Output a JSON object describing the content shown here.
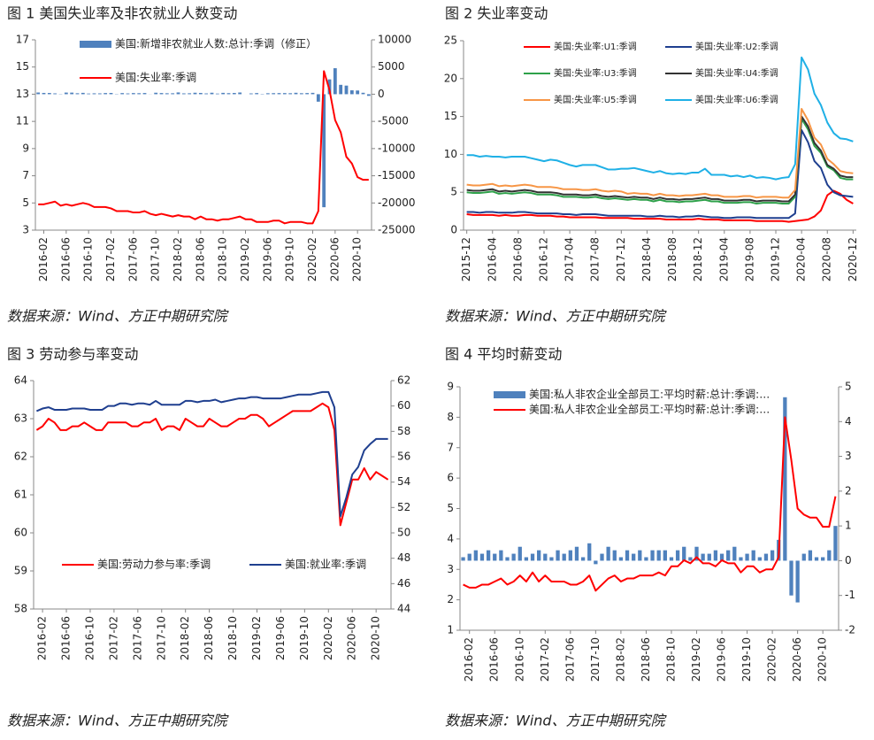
{
  "chart_data": [
    {
      "type": "combo",
      "title": "图 1 美国失业率及非农就业人数变动",
      "source": "数据来源：Wind、方正中期研究院",
      "legend": "top",
      "categories": [
        null,
        "2016-02",
        null,
        null,
        null,
        "2016-06",
        null,
        null,
        null,
        "2016-10",
        null,
        null,
        null,
        "2017-02",
        null,
        null,
        null,
        "2017-06",
        null,
        null,
        null,
        "2017-10",
        null,
        null,
        null,
        "2018-02",
        null,
        null,
        null,
        "2018-06",
        null,
        null,
        null,
        "2018-10",
        null,
        null,
        null,
        "2019-02",
        null,
        null,
        null,
        "2019-06",
        null,
        null,
        null,
        "2019-10",
        null,
        null,
        null,
        "2020-02",
        null,
        null,
        null,
        "2020-06",
        null,
        null,
        null,
        "2020-10",
        null,
        null
      ],
      "ylim": [
        3,
        17
      ],
      "yticks": [
        3,
        5,
        7,
        9,
        11,
        13,
        15,
        17
      ],
      "y2lim": [
        -25000,
        10000
      ],
      "y2ticks": [
        -25000,
        -20000,
        -15000,
        -10000,
        -5000,
        0,
        5000,
        10000
      ],
      "series": [
        {
          "name": "美国:新增非农就业人数:总计:季调（修正）",
          "type": "bar",
          "axis": "y2",
          "color": "#4f81bd",
          "values": [
            310,
            237,
            225,
            153,
            43,
            297,
            291,
            176,
            249,
            124,
            164,
            155,
            216,
            232,
            50,
            207,
            145,
            210,
            187,
            221,
            18,
            271,
            216,
            175,
            176,
            324,
            155,
            175,
            270,
            235,
            147,
            270,
            118,
            250,
            196,
            227,
            312,
            1,
            147,
            210,
            62,
            178,
            194,
            207,
            208,
            185,
            261,
            184,
            214,
            251,
            -1373,
            -20787,
            2725,
            4781,
            1726,
            1583,
            716,
            680,
            264,
            -306
          ]
        },
        {
          "name": "美国:失业率:季调",
          "type": "line",
          "color": "#ff0000",
          "values": [
            4.9,
            4.9,
            5.0,
            5.1,
            4.8,
            4.9,
            4.8,
            4.9,
            5.0,
            4.9,
            4.7,
            4.7,
            4.7,
            4.6,
            4.4,
            4.4,
            4.4,
            4.3,
            4.3,
            4.4,
            4.2,
            4.1,
            4.2,
            4.1,
            4.0,
            4.1,
            4.0,
            4.0,
            3.8,
            4.0,
            3.8,
            3.8,
            3.7,
            3.8,
            3.8,
            3.9,
            4.0,
            3.8,
            3.8,
            3.6,
            3.6,
            3.6,
            3.7,
            3.7,
            3.5,
            3.6,
            3.6,
            3.6,
            3.5,
            3.5,
            4.4,
            14.7,
            13.3,
            11.1,
            10.2,
            8.4,
            7.9,
            6.9,
            6.7,
            6.7
          ]
        }
      ]
    },
    {
      "type": "line",
      "title": "图 2 失业率变动",
      "source": "数据来源：Wind、方正中期研究院",
      "legend": "top",
      "categories": [
        "2015-12",
        null,
        null,
        null,
        "2016-04",
        null,
        null,
        null,
        "2016-08",
        null,
        null,
        null,
        "2016-12",
        null,
        null,
        null,
        "2017-04",
        null,
        null,
        null,
        "2017-08",
        null,
        null,
        null,
        "2017-12",
        null,
        null,
        null,
        "2018-04",
        null,
        null,
        null,
        "2018-08",
        null,
        null,
        null,
        "2018-12",
        null,
        null,
        null,
        "2019-04",
        null,
        null,
        null,
        "2019-08",
        null,
        null,
        null,
        "2019-12",
        null,
        null,
        null,
        "2020-04",
        null,
        null,
        null,
        "2020-08",
        null,
        null,
        null,
        "2020-12"
      ],
      "ylim": [
        0,
        25
      ],
      "yticks": [
        0,
        5,
        10,
        15,
        20,
        25
      ],
      "series": [
        {
          "name": "美国:失业率:U1:季调",
          "type": "line",
          "color": "#ff0000",
          "values": [
            2.1,
            2.0,
            2.0,
            2.0,
            2.0,
            1.9,
            2.0,
            1.9,
            1.9,
            2.0,
            2.0,
            1.9,
            1.9,
            1.9,
            1.8,
            1.8,
            1.7,
            1.7,
            1.7,
            1.7,
            1.7,
            1.6,
            1.6,
            1.6,
            1.6,
            1.6,
            1.5,
            1.5,
            1.5,
            1.5,
            1.5,
            1.4,
            1.4,
            1.4,
            1.4,
            1.4,
            1.5,
            1.4,
            1.4,
            1.4,
            1.3,
            1.3,
            1.3,
            1.3,
            1.3,
            1.2,
            1.2,
            1.2,
            1.2,
            1.2,
            1.1,
            1.2,
            1.3,
            1.4,
            1.8,
            2.6,
            4.6,
            5.2,
            4.8,
            4.0,
            3.5
          ]
        },
        {
          "name": "美国:失业率:U2:季调",
          "type": "line",
          "color": "#1f3f8f",
          "values": [
            2.4,
            2.4,
            2.3,
            2.4,
            2.4,
            2.3,
            2.3,
            2.3,
            2.4,
            2.4,
            2.3,
            2.2,
            2.2,
            2.2,
            2.2,
            2.1,
            2.1,
            2.0,
            2.1,
            2.1,
            2.1,
            2.0,
            1.9,
            1.9,
            1.9,
            1.9,
            1.9,
            1.9,
            1.8,
            1.8,
            1.9,
            1.8,
            1.8,
            1.7,
            1.8,
            1.8,
            1.9,
            1.8,
            1.7,
            1.7,
            1.6,
            1.6,
            1.7,
            1.7,
            1.7,
            1.6,
            1.6,
            1.6,
            1.6,
            1.6,
            1.6,
            2.2,
            13.2,
            11.6,
            9.1,
            8.2,
            6.0,
            5.0,
            4.6,
            4.5,
            4.4
          ]
        },
        {
          "name": "美国:失业率:U3:季调",
          "type": "line",
          "color": "#2ea14a",
          "values": [
            5.0,
            4.9,
            4.9,
            5.0,
            5.1,
            4.8,
            4.9,
            4.8,
            4.9,
            5.0,
            4.9,
            4.7,
            4.7,
            4.7,
            4.6,
            4.4,
            4.4,
            4.4,
            4.3,
            4.3,
            4.4,
            4.2,
            4.1,
            4.2,
            4.1,
            4.0,
            4.1,
            4.0,
            4.0,
            3.8,
            4.0,
            3.8,
            3.8,
            3.7,
            3.8,
            3.8,
            3.9,
            4.0,
            3.8,
            3.8,
            3.6,
            3.6,
            3.6,
            3.7,
            3.7,
            3.5,
            3.6,
            3.6,
            3.6,
            3.5,
            3.5,
            4.4,
            14.7,
            13.3,
            11.1,
            10.2,
            8.4,
            7.9,
            6.9,
            6.7,
            6.7
          ]
        },
        {
          "name": "美国:失业率:U4:季调",
          "type": "line",
          "color": "#333333",
          "values": [
            5.3,
            5.2,
            5.2,
            5.3,
            5.4,
            5.1,
            5.2,
            5.1,
            5.2,
            5.3,
            5.2,
            5.0,
            5.0,
            5.0,
            4.9,
            4.7,
            4.7,
            4.7,
            4.6,
            4.6,
            4.7,
            4.5,
            4.4,
            4.5,
            4.4,
            4.3,
            4.4,
            4.3,
            4.3,
            4.1,
            4.3,
            4.1,
            4.1,
            4.0,
            4.1,
            4.1,
            4.2,
            4.3,
            4.1,
            4.1,
            3.9,
            3.9,
            3.9,
            4.0,
            4.0,
            3.8,
            3.9,
            3.9,
            3.9,
            3.8,
            3.8,
            4.7,
            15.0,
            13.7,
            11.5,
            10.5,
            8.6,
            8.1,
            7.2,
            7.0,
            7.0
          ]
        },
        {
          "name": "美国:失业率:U5:季调",
          "type": "line",
          "color": "#f79646",
          "values": [
            6.0,
            5.9,
            5.9,
            6.0,
            6.1,
            5.8,
            5.9,
            5.8,
            5.9,
            6.0,
            5.9,
            5.7,
            5.7,
            5.7,
            5.6,
            5.4,
            5.4,
            5.4,
            5.3,
            5.3,
            5.4,
            5.2,
            5.1,
            5.2,
            5.1,
            4.8,
            4.9,
            4.8,
            4.8,
            4.6,
            4.8,
            4.6,
            4.6,
            4.5,
            4.6,
            4.6,
            4.7,
            4.8,
            4.6,
            4.6,
            4.4,
            4.4,
            4.4,
            4.5,
            4.5,
            4.3,
            4.4,
            4.4,
            4.4,
            4.3,
            4.3,
            5.3,
            16.0,
            14.5,
            12.2,
            11.3,
            9.4,
            8.7,
            7.8,
            7.6,
            7.5
          ]
        },
        {
          "name": "美国:失业率:U6:季调",
          "type": "line",
          "color": "#1fb0e6",
          "values": [
            9.9,
            9.9,
            9.7,
            9.8,
            9.7,
            9.7,
            9.6,
            9.7,
            9.7,
            9.7,
            9.5,
            9.3,
            9.1,
            9.3,
            9.2,
            8.9,
            8.6,
            8.4,
            8.6,
            8.6,
            8.6,
            8.3,
            8.0,
            8.0,
            8.1,
            8.1,
            8.2,
            8.0,
            7.8,
            7.6,
            7.8,
            7.5,
            7.4,
            7.5,
            7.4,
            7.6,
            7.6,
            8.1,
            7.3,
            7.3,
            7.3,
            7.1,
            7.2,
            7.0,
            7.2,
            6.9,
            7.0,
            6.9,
            6.7,
            6.9,
            7.0,
            8.7,
            22.8,
            21.2,
            18.0,
            16.5,
            14.2,
            12.8,
            12.1,
            12.0,
            11.7
          ]
        }
      ]
    },
    {
      "type": "line",
      "title": "图 3 劳动参与率变动",
      "source": "数据来源：Wind、方正中期研究院",
      "legend": "bottom",
      "categories": [
        null,
        "2016-02",
        null,
        null,
        null,
        "2016-06",
        null,
        null,
        null,
        "2016-10",
        null,
        null,
        null,
        "2017-02",
        null,
        null,
        null,
        "2017-06",
        null,
        null,
        null,
        "2017-10",
        null,
        null,
        null,
        "2018-02",
        null,
        null,
        null,
        "2018-06",
        null,
        null,
        null,
        "2018-10",
        null,
        null,
        null,
        "2019-02",
        null,
        null,
        null,
        "2019-06",
        null,
        null,
        null,
        "2019-10",
        null,
        null,
        null,
        "2020-02",
        null,
        null,
        null,
        "2020-06",
        null,
        null,
        null,
        "2020-10",
        null,
        null
      ],
      "ylim": [
        58,
        64
      ],
      "yticks": [
        58,
        59,
        60,
        61,
        62,
        63,
        64
      ],
      "y2lim": [
        44,
        62
      ],
      "y2ticks": [
        44,
        46,
        48,
        50,
        52,
        54,
        56,
        58,
        60,
        62
      ],
      "series": [
        {
          "name": "美国:劳动力参与率:季调",
          "type": "line",
          "color": "#ff0000",
          "values": [
            62.7,
            62.8,
            63.0,
            62.9,
            62.7,
            62.7,
            62.8,
            62.8,
            62.9,
            62.8,
            62.7,
            62.7,
            62.9,
            62.9,
            62.9,
            62.9,
            62.8,
            62.8,
            62.9,
            62.9,
            63.0,
            62.7,
            62.8,
            62.8,
            62.7,
            63.0,
            62.9,
            62.8,
            62.8,
            63.0,
            62.9,
            62.8,
            62.8,
            62.9,
            63.0,
            63.0,
            63.1,
            63.1,
            63.0,
            62.8,
            62.9,
            63.0,
            63.1,
            63.2,
            63.2,
            63.2,
            63.2,
            63.3,
            63.4,
            63.3,
            62.7,
            60.2,
            60.8,
            61.4,
            61.4,
            61.7,
            61.4,
            61.6,
            61.5,
            61.4
          ]
        },
        {
          "name": "美国:就业率:季调",
          "type": "line",
          "axis": "y2",
          "color": "#1f3f8f",
          "values": [
            59.6,
            59.8,
            59.9,
            59.7,
            59.7,
            59.7,
            59.8,
            59.8,
            59.8,
            59.7,
            59.7,
            59.7,
            60.0,
            60.0,
            60.2,
            60.2,
            60.1,
            60.2,
            60.2,
            60.1,
            60.4,
            60.1,
            60.1,
            60.1,
            60.1,
            60.4,
            60.4,
            60.3,
            60.4,
            60.4,
            60.5,
            60.3,
            60.4,
            60.5,
            60.6,
            60.6,
            60.7,
            60.7,
            60.6,
            60.6,
            60.6,
            60.6,
            60.7,
            60.8,
            60.9,
            60.9,
            60.9,
            61.0,
            61.1,
            61.1,
            59.9,
            51.3,
            52.8,
            54.6,
            55.2,
            56.5,
            57.0,
            57.4,
            57.4,
            57.4
          ]
        }
      ]
    },
    {
      "type": "combo",
      "title": "图 4 平均时薪变动",
      "source": "数据来源：Wind、方正中期研究院",
      "legend": "top",
      "categories": [
        null,
        "2016-02",
        null,
        null,
        null,
        "2016-06",
        null,
        null,
        null,
        "2016-10",
        null,
        null,
        null,
        "2017-02",
        null,
        null,
        null,
        "2017-06",
        null,
        null,
        null,
        "2017-10",
        null,
        null,
        null,
        "2018-02",
        null,
        null,
        null,
        "2018-06",
        null,
        null,
        null,
        "2018-10",
        null,
        null,
        null,
        "2019-02",
        null,
        null,
        null,
        "2019-06",
        null,
        null,
        null,
        "2019-10",
        null,
        null,
        null,
        "2020-02",
        null,
        null,
        null,
        "2020-06",
        null,
        null,
        null,
        "2020-10",
        null,
        null
      ],
      "ylim": [
        1,
        9
      ],
      "yticks": [
        1,
        2,
        3,
        4,
        5,
        6,
        7,
        8,
        9
      ],
      "y2lim": [
        -2,
        5
      ],
      "y2ticks": [
        -2,
        -1,
        0,
        1,
        2,
        3,
        4,
        5
      ],
      "series": [
        {
          "name": "美国:私人非农企业全部员工:平均时薪:总计:季调:…",
          "type": "bar",
          "axis": "y2",
          "color": "#4f81bd",
          "values": [
            0.1,
            0.2,
            0.3,
            0.2,
            0.3,
            0.2,
            0.3,
            0.1,
            0.2,
            0.4,
            0.1,
            0.2,
            0.3,
            0.2,
            0.1,
            0.3,
            0.2,
            0.3,
            0.4,
            0.1,
            0.5,
            -0.1,
            0.2,
            0.4,
            0.3,
            0.1,
            0.3,
            0.2,
            0.3,
            0.1,
            0.3,
            0.3,
            0.3,
            0.1,
            0.3,
            0.4,
            0.1,
            0.4,
            0.2,
            0.2,
            0.3,
            0.2,
            0.3,
            0.4,
            0.1,
            0.2,
            0.3,
            0.1,
            0.2,
            0.3,
            0.6,
            4.7,
            -1.0,
            -1.2,
            0.2,
            0.3,
            0.1,
            0.1,
            0.3,
            1.0
          ]
        },
        {
          "name": "美国:私人非农企业全部员工:平均时薪:总计:季调:…",
          "type": "line",
          "color": "#ff0000",
          "values": [
            2.5,
            2.4,
            2.4,
            2.5,
            2.5,
            2.6,
            2.7,
            2.5,
            2.6,
            2.8,
            2.6,
            2.9,
            2.6,
            2.8,
            2.6,
            2.6,
            2.6,
            2.5,
            2.5,
            2.6,
            2.8,
            2.3,
            2.5,
            2.7,
            2.8,
            2.6,
            2.7,
            2.7,
            2.8,
            2.8,
            2.8,
            2.9,
            2.8,
            3.1,
            3.1,
            3.3,
            3.2,
            3.4,
            3.2,
            3.2,
            3.1,
            3.3,
            3.2,
            3.2,
            2.9,
            3.1,
            3.1,
            2.9,
            3.0,
            3.0,
            3.4,
            8.0,
            6.6,
            5.0,
            4.8,
            4.7,
            4.7,
            4.4,
            4.4,
            5.4
          ]
        }
      ]
    }
  ]
}
